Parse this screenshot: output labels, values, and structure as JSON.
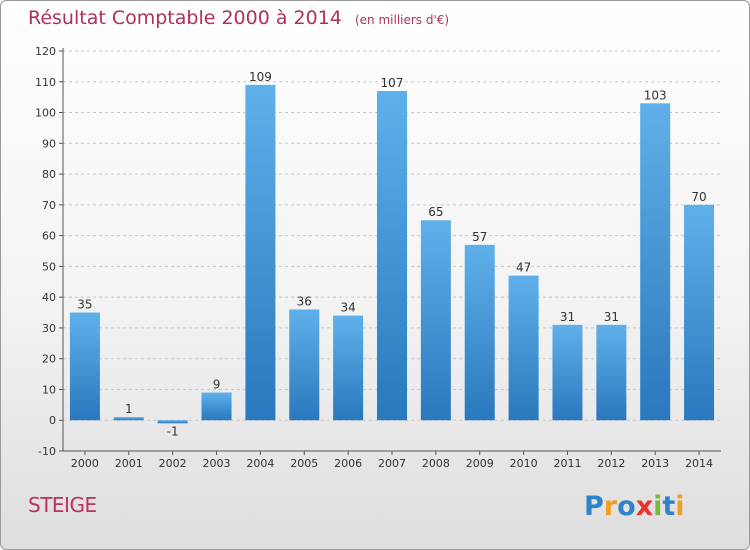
{
  "header": {
    "title": "Résultat Comptable 2000 à 2014",
    "unit": "(en milliers d'€)"
  },
  "footer": {
    "commune": "STEIGE",
    "brand": "Proxiti"
  },
  "logo_letters": [
    {
      "ch": "P",
      "color": "#2f83c8"
    },
    {
      "ch": "r",
      "color": "#f0a020"
    },
    {
      "ch": "o",
      "color": "#2f83c8"
    },
    {
      "ch": "x",
      "color": "#e8342c"
    },
    {
      "ch": "i",
      "color": "#7ab83a"
    },
    {
      "ch": "t",
      "color": "#2f83c8"
    },
    {
      "ch": "i",
      "color": "#f0a020"
    }
  ],
  "chart_data": {
    "type": "bar",
    "title": "Résultat Comptable 2000 à 2014",
    "xlabel": "",
    "ylabel": "",
    "ylim": [
      -10,
      120
    ],
    "yticks": [
      -10,
      0,
      10,
      20,
      30,
      40,
      50,
      60,
      70,
      80,
      90,
      100,
      110,
      120
    ],
    "grid": true,
    "categories": [
      "2000",
      "2001",
      "2002",
      "2003",
      "2004",
      "2005",
      "2006",
      "2007",
      "2008",
      "2009",
      "2010",
      "2011",
      "2012",
      "2013",
      "2014"
    ],
    "values": [
      35,
      1,
      -1,
      9,
      109,
      36,
      34,
      107,
      65,
      57,
      47,
      31,
      31,
      103,
      70
    ],
    "colors": {
      "bar_light": "#5fb0ea",
      "bar_dark": "#2a78bd",
      "title": "#b0305a"
    }
  }
}
